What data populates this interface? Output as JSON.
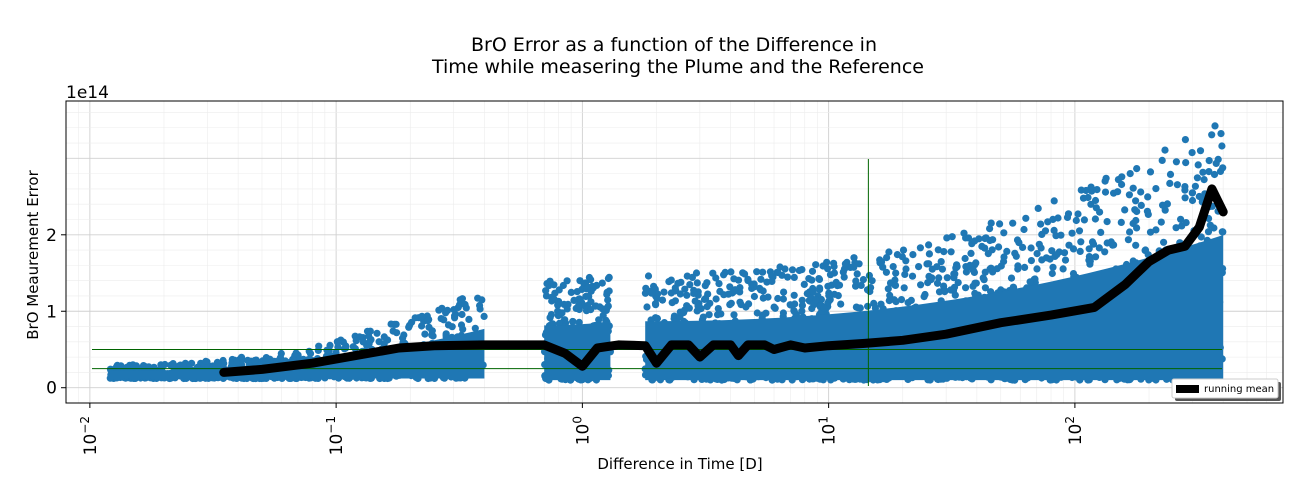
{
  "chart_data": {
    "type": "scatter",
    "title_lines": [
      "BrO Error as a function of the Difference in",
      "Time while measering the Plume and the Reference"
    ],
    "xlabel": "Difference in Time [D]",
    "ylabel": "BrO Meaurement Error",
    "x_scale": "log",
    "xlim": [
      0.008,
      700
    ],
    "ylim": [
      -20000000000000.0,
      375000000000000.0
    ],
    "y_offset_text": "1e14",
    "x_ticks": [
      {
        "value": 0.01,
        "label_base": "10",
        "label_exp": "−2"
      },
      {
        "value": 0.1,
        "label_base": "10",
        "label_exp": "−1"
      },
      {
        "value": 1,
        "label_base": "10",
        "label_exp": "0"
      },
      {
        "value": 10,
        "label_base": "10",
        "label_exp": "1"
      },
      {
        "value": 100,
        "label_base": "10",
        "label_exp": "2"
      }
    ],
    "y_ticks": [
      {
        "value": 0,
        "label": "0"
      },
      {
        "value": 100000000000000.0,
        "label": "1"
      },
      {
        "value": 200000000000000.0,
        "label": "2"
      }
    ],
    "grid": "major and minor",
    "colors": {
      "scatter": "#1f77b4",
      "running_mean": "#000000",
      "ref_lines": "#006400"
    },
    "reference_lines": {
      "horizontal": [
        25000000000000.0,
        50000000000000.0
      ],
      "vertical": [
        14.5
      ]
    },
    "scatter_clusters": [
      {
        "x_min": 0.012,
        "x_max": 0.4,
        "y_lo": 12000000000000.0,
        "y_hi_start": 30000000000000.0,
        "y_hi_end": 130000000000000.0
      },
      {
        "x_min": 0.7,
        "x_max": 1.3,
        "y_lo": 10000000000000.0,
        "y_hi_start": 140000000000000.0,
        "y_hi_end": 150000000000000.0
      },
      {
        "x_min": 1.8,
        "x_max": 400,
        "y_lo": 10000000000000.0,
        "y_hi_start": 150000000000000.0,
        "y_hi_end": 355000000000000.0
      }
    ],
    "running_mean": {
      "name": "running mean",
      "x": [
        0.035,
        0.05,
        0.08,
        0.12,
        0.18,
        0.25,
        0.4,
        0.7,
        0.85,
        1.0,
        1.15,
        1.4,
        1.8,
        2.0,
        2.3,
        2.7,
        3.0,
        3.4,
        4.0,
        4.3,
        4.7,
        5.5,
        6.0,
        7.0,
        8.0,
        10,
        14,
        20,
        30,
        50,
        80,
        120,
        160,
        200,
        240,
        280,
        320,
        360,
        400
      ],
      "y": [
        20000000000000.0,
        24000000000000.0,
        32000000000000.0,
        42000000000000.0,
        52000000000000.0,
        55000000000000.0,
        56000000000000.0,
        56000000000000.0,
        45000000000000.0,
        28000000000000.0,
        52000000000000.0,
        56000000000000.0,
        55000000000000.0,
        32000000000000.0,
        56000000000000.0,
        56000000000000.0,
        40000000000000.0,
        56000000000000.0,
        56000000000000.0,
        42000000000000.0,
        56000000000000.0,
        56000000000000.0,
        50000000000000.0,
        56000000000000.0,
        52000000000000.0,
        55000000000000.0,
        58000000000000.0,
        62000000000000.0,
        70000000000000.0,
        85000000000000.0,
        95000000000000.0,
        105000000000000.0,
        135000000000000.0,
        165000000000000.0,
        180000000000000.0,
        185000000000000.0,
        210000000000000.0,
        260000000000000.0,
        230000000000000.0
      ]
    },
    "legend": {
      "position": "bottom-right",
      "entries": [
        "running mean"
      ]
    }
  }
}
